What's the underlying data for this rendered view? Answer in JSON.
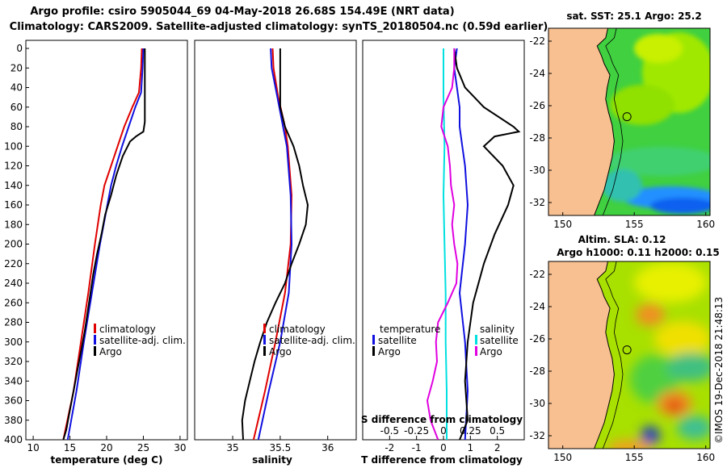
{
  "header": {
    "line1": "Argo profile: csiro 5905044_69 04-May-2018 26.68S 154.49E (NRT data)",
    "line2": "Climatology: CARS2009. Satellite-adjusted climatology: synTS_20180504.nc (0.59d earlier)"
  },
  "colors": {
    "climatology": "#e00000",
    "satellite": "#1010e0",
    "argo": "#000000",
    "salinity_climatology": "#00e0e0",
    "salinity_satellite": "#e000e0",
    "land": "#f8c090",
    "coast": "#000000"
  },
  "chart_data": [
    {
      "type": "line",
      "id": "temperature",
      "xlabel": "temperature (deg C)",
      "ylabel": "depth",
      "xlim": [
        9,
        31
      ],
      "ylim": [
        400,
        0
      ],
      "xticks": [
        10,
        15,
        20,
        25,
        30
      ],
      "yticks": [
        0,
        20,
        40,
        60,
        80,
        100,
        120,
        140,
        160,
        180,
        200,
        220,
        240,
        260,
        280,
        300,
        320,
        340,
        360,
        380,
        400
      ],
      "legend": {
        "position": "lower-right",
        "entries": [
          "climatology",
          "satellite-adj. clim.",
          "Argo"
        ]
      },
      "series": [
        {
          "name": "climatology",
          "color": "#e00000",
          "depth": [
            0,
            20,
            45,
            60,
            80,
            100,
            120,
            140,
            160,
            200,
            250,
            300,
            350,
            400
          ],
          "values": [
            24.8,
            24.7,
            24.4,
            23.5,
            22.4,
            21.5,
            20.6,
            19.7,
            19.2,
            18.4,
            17.5,
            16.5,
            15.5,
            14.1
          ]
        },
        {
          "name": "satellite-adj. clim.",
          "color": "#1010e0",
          "depth": [
            0,
            20,
            45,
            60,
            80,
            100,
            120,
            140,
            160,
            200,
            250,
            300,
            350,
            400
          ],
          "values": [
            25.0,
            24.9,
            24.7,
            23.9,
            23.0,
            22.1,
            21.3,
            20.6,
            20.1,
            19.1,
            18.0,
            16.9,
            15.9,
            14.7
          ]
        },
        {
          "name": "Argo",
          "color": "#000000",
          "depth": [
            0,
            20,
            40,
            60,
            75,
            85,
            90,
            95,
            110,
            130,
            150,
            170,
            190,
            210,
            230,
            250,
            270,
            290,
            310,
            330,
            350,
            370,
            390,
            400
          ],
          "values": [
            25.2,
            25.2,
            25.2,
            25.2,
            25.2,
            25.0,
            24.0,
            23.2,
            22.2,
            21.3,
            20.6,
            19.8,
            19.3,
            18.7,
            18.2,
            17.8,
            17.4,
            17.0,
            16.5,
            16.0,
            15.5,
            15.0,
            14.5,
            14.1
          ]
        }
      ]
    },
    {
      "type": "line",
      "id": "salinity",
      "xlabel": "salinity",
      "ylabel": "depth",
      "xlim": [
        34.6,
        36.3
      ],
      "ylim": [
        400,
        0
      ],
      "xticks": [
        35,
        35.5,
        36
      ],
      "legend": {
        "position": "lower-right",
        "entries": [
          "climatology",
          "satellite-adj. clim.",
          "Argo"
        ]
      },
      "series": [
        {
          "name": "climatology",
          "color": "#e00000",
          "depth": [
            0,
            20,
            50,
            80,
            100,
            150,
            200,
            250,
            300,
            350,
            400
          ],
          "values": [
            35.42,
            35.43,
            35.48,
            35.55,
            35.58,
            35.62,
            35.61,
            35.55,
            35.45,
            35.34,
            35.22
          ]
        },
        {
          "name": "satellite-adj. clim.",
          "color": "#1010e0",
          "depth": [
            0,
            20,
            50,
            80,
            100,
            150,
            200,
            250,
            300,
            350,
            400
          ],
          "values": [
            35.4,
            35.41,
            35.47,
            35.53,
            35.57,
            35.61,
            35.62,
            35.59,
            35.5,
            35.38,
            35.27
          ]
        },
        {
          "name": "Argo",
          "color": "#000000",
          "depth": [
            0,
            20,
            40,
            60,
            80,
            100,
            120,
            140,
            160,
            180,
            200,
            220,
            240,
            260,
            280,
            300,
            320,
            340,
            360,
            380,
            400
          ],
          "values": [
            35.5,
            35.5,
            35.5,
            35.5,
            35.55,
            35.64,
            35.7,
            35.74,
            35.79,
            35.77,
            35.7,
            35.62,
            35.55,
            35.45,
            35.36,
            35.29,
            35.23,
            35.18,
            35.13,
            35.1,
            35.11
          ]
        }
      ]
    },
    {
      "type": "line",
      "id": "difference",
      "xlabel": "T difference from climatology",
      "x2label": "S difference from climatology",
      "ylabel": "depth",
      "xlim": [
        -3,
        3
      ],
      "x2lim": [
        -0.75,
        0.75
      ],
      "ylim": [
        400,
        0
      ],
      "xticks": [
        -2,
        -1,
        0,
        1,
        2
      ],
      "x2ticks": [
        -0.5,
        -0.25,
        0,
        0.25,
        0.5
      ],
      "legend_temperature": {
        "title": "temperature",
        "entries": [
          "satellite",
          "Argo"
        ]
      },
      "legend_salinity": {
        "title": "salinity",
        "entries": [
          "satellite",
          "Argo"
        ]
      },
      "series": [
        {
          "name": "T satellite",
          "axis": "T",
          "color": "#1010e0",
          "depth": [
            0,
            20,
            40,
            60,
            80,
            100,
            120,
            160,
            200,
            250,
            300,
            350,
            400
          ],
          "values": [
            0.5,
            0.4,
            0.5,
            0.6,
            0.6,
            0.7,
            0.8,
            0.9,
            0.8,
            0.6,
            0.8,
            0.9,
            0.8
          ]
        },
        {
          "name": "T Argo",
          "axis": "T",
          "color": "#000000",
          "depth": [
            0,
            20,
            40,
            60,
            80,
            85,
            90,
            100,
            120,
            140,
            160,
            190,
            220,
            260,
            300,
            340,
            380,
            400
          ],
          "values": [
            0.4,
            0.5,
            0.8,
            1.5,
            2.6,
            2.8,
            1.9,
            1.5,
            2.2,
            2.6,
            2.4,
            1.9,
            1.5,
            1.1,
            0.9,
            0.8,
            0.9,
            0.6
          ]
        },
        {
          "name": "S climatology",
          "axis": "S",
          "color": "#00e0e0",
          "depth": [
            0,
            50,
            100,
            150,
            200,
            250,
            300,
            350,
            400
          ],
          "values": [
            0.0,
            0.0,
            0.01,
            0.0,
            0.01,
            0.02,
            0.02,
            0.03,
            0.03
          ]
        },
        {
          "name": "S Argo",
          "axis": "S",
          "color": "#e000e0",
          "depth": [
            0,
            20,
            40,
            60,
            80,
            100,
            120,
            140,
            160,
            180,
            200,
            220,
            240,
            260,
            280,
            300,
            320,
            340,
            360,
            380,
            400
          ],
          "values": [
            0.1,
            0.1,
            0.08,
            0.0,
            -0.02,
            0.04,
            0.06,
            0.07,
            0.1,
            0.08,
            0.1,
            0.13,
            0.12,
            0.04,
            -0.05,
            -0.07,
            -0.06,
            -0.1,
            -0.15,
            -0.12,
            -0.05
          ]
        }
      ]
    },
    {
      "type": "heatmap",
      "id": "sst_map",
      "title": "sat. SST: 25.1 Argo: 25.2",
      "xlim": [
        149,
        160.3
      ],
      "ylim": [
        -32.8,
        -21.2
      ],
      "xticks": [
        150,
        155,
        160
      ],
      "yticks": [
        -22,
        -24,
        -26,
        -28,
        -30,
        -32
      ],
      "marker": {
        "lon": 154.49,
        "lat": -26.68
      }
    },
    {
      "type": "heatmap",
      "id": "sla_map",
      "title": "Altim. SLA: 0.12",
      "subtitle": "Argo h1000: 0.11 h2000: 0.15",
      "xlim": [
        149,
        160.3
      ],
      "ylim": [
        -32.8,
        -21.2
      ],
      "xticks": [
        150,
        155,
        160
      ],
      "yticks": [
        -22,
        -24,
        -26,
        -28,
        -30,
        -32
      ],
      "marker": {
        "lon": 154.49,
        "lat": -26.68
      }
    }
  ],
  "footer": {
    "credit": "©IMOS 19-Dec-2018 21:48:13"
  }
}
